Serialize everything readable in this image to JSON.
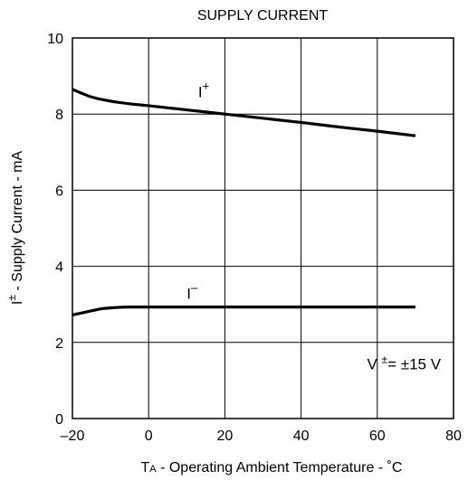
{
  "chart_data": {
    "type": "line",
    "title": "SUPPLY CURRENT",
    "xlabel": {
      "main": "T",
      "sub": "A",
      "rest": " - Operating Ambient Temperature - ˚C"
    },
    "ylabel": {
      "main": "I",
      "sup": "±",
      "rest": " - Supply Current - mA"
    },
    "xlim": [
      -20,
      80
    ],
    "ylim": [
      0,
      10
    ],
    "xticks": [
      {
        "value": -20,
        "label": "–20"
      },
      {
        "value": 0,
        "label": "0"
      },
      {
        "value": 20,
        "label": "20"
      },
      {
        "value": 40,
        "label": "40"
      },
      {
        "value": 60,
        "label": "60"
      },
      {
        "value": 80,
        "label": "80"
      }
    ],
    "yticks": [
      {
        "value": 0,
        "label": "0"
      },
      {
        "value": 2,
        "label": "2"
      },
      {
        "value": 4,
        "label": "4"
      },
      {
        "value": 6,
        "label": "6"
      },
      {
        "value": 8,
        "label": "8"
      },
      {
        "value": 10,
        "label": "10"
      }
    ],
    "grid": true,
    "series": [
      {
        "name": "I+",
        "label_main": "I",
        "label_sup": "+",
        "label_at": {
          "x": 13,
          "y": 8.45
        },
        "x": [
          -20,
          -15,
          -10,
          -5,
          0,
          10,
          20,
          30,
          40,
          50,
          60,
          70
        ],
        "y": [
          8.65,
          8.45,
          8.34,
          8.27,
          8.22,
          8.11,
          8.0,
          7.89,
          7.78,
          7.66,
          7.55,
          7.43
        ]
      },
      {
        "name": "I-",
        "label_main": "I",
        "label_sup": "–",
        "label_at": {
          "x": 10,
          "y": 3.15
        },
        "x": [
          -20,
          -15,
          -12,
          -8,
          -5,
          0,
          10,
          20,
          30,
          40,
          50,
          60,
          70
        ],
        "y": [
          2.72,
          2.83,
          2.89,
          2.92,
          2.93,
          2.93,
          2.93,
          2.93,
          2.93,
          2.93,
          2.93,
          2.93,
          2.93
        ]
      }
    ],
    "annotations": [
      {
        "parts": [
          "V ",
          "±",
          "= ±15 V"
        ],
        "at": {
          "x": 67,
          "y": 1.3
        }
      }
    ],
    "colors": {
      "line": "#000000",
      "grid": "#000000",
      "text": "#000000"
    }
  }
}
